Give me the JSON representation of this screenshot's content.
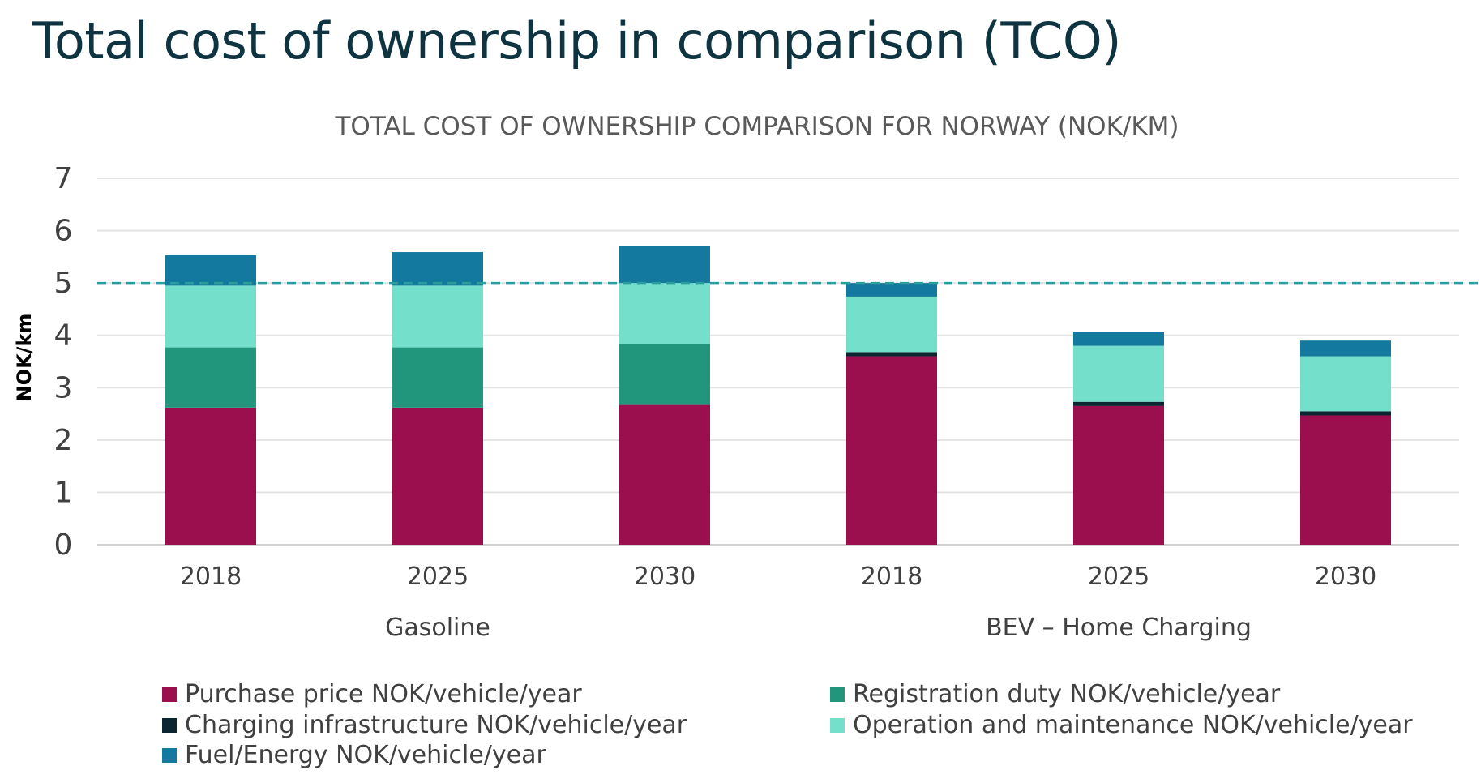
{
  "page_title": "Total cost of ownership in comparison (TCO)",
  "chart_data": {
    "type": "bar",
    "stacked": true,
    "title": "TOTAL COST OF OWNERSHIP COMPARISON FOR NORWAY (NOK/KM)",
    "xlabel": "",
    "ylabel": "NOK/km",
    "ylim": [
      0,
      7
    ],
    "yticks": [
      0,
      1,
      2,
      3,
      4,
      5,
      6,
      7
    ],
    "grid": true,
    "legend_position": "bottom",
    "reference_line": {
      "y": 5,
      "style": "dashed",
      "color": "#2a9d9d"
    },
    "categories": [
      "2018",
      "2025",
      "2030",
      "2018",
      "2025",
      "2030"
    ],
    "groups": [
      {
        "label": "Gasoline",
        "categories": [
          "2018",
          "2025",
          "2030"
        ]
      },
      {
        "label": "BEV – Home Charging",
        "categories": [
          "2018",
          "2025",
          "2030"
        ]
      }
    ],
    "series": [
      {
        "name": "Purchase price NOK/vehicle/year",
        "color": "#9b0f4e",
        "values": [
          2.62,
          2.62,
          2.67,
          3.6,
          2.65,
          2.47
        ]
      },
      {
        "name": "Registration duty NOK/vehicle/year",
        "color": "#21967d",
        "values": [
          1.15,
          1.15,
          1.17,
          0,
          0,
          0
        ]
      },
      {
        "name": "Charging infrastructure NOK/vehicle/year",
        "color": "#0b2630",
        "values": [
          0,
          0,
          0,
          0.08,
          0.08,
          0.08
        ]
      },
      {
        "name": "Operation and maintenance NOK/vehicle/year",
        "color": "#74e0cc",
        "values": [
          1.18,
          1.18,
          1.16,
          1.06,
          1.07,
          1.05
        ]
      },
      {
        "name": "Fuel/Energy NOK/vehicle/year",
        "color": "#13799e",
        "values": [
          0.58,
          0.64,
          0.7,
          0.26,
          0.27,
          0.3
        ]
      }
    ]
  }
}
